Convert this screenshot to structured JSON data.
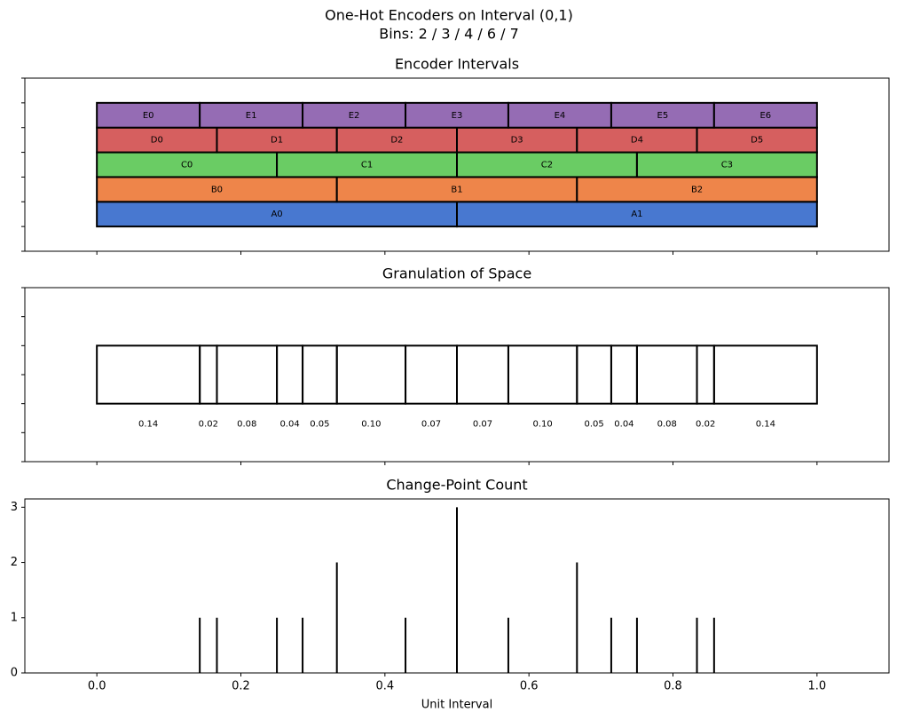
{
  "title": "One-Hot Encoders on Interval (0,1)",
  "subtitle": "Bins: 2 / 3 / 4 / 6 / 7",
  "chart_data": [
    {
      "type": "interval",
      "title": "Encoder Intervals",
      "xlim": [
        -0.1,
        1.1
      ],
      "xticks": [
        {
          "value": 0,
          "label": "0.0"
        },
        0.2,
        0.4,
        0.6,
        0.8,
        {
          "value": 1,
          "label": "1.0"
        }
      ],
      "xtick_labels": false,
      "ylim": [
        0,
        7
      ],
      "yticks": [
        0,
        1,
        2,
        3,
        4,
        5,
        6,
        7
      ],
      "ytick_labels": false,
      "series": [
        {
          "color": "#4878d0",
          "labels": [
            "A0",
            "A1"
          ],
          "edges": [
            0,
            0.5,
            1
          ]
        },
        {
          "color": "#ee854a",
          "labels": [
            "B0",
            "B1",
            "B2"
          ],
          "edges": [
            0,
            0.3333,
            0.6667,
            1
          ]
        },
        {
          "color": "#6acc64",
          "labels": [
            "C0",
            "C1",
            "C2",
            "C3"
          ],
          "edges": [
            0,
            0.25,
            0.5,
            0.75,
            1
          ]
        },
        {
          "color": "#d65f5f",
          "labels": [
            "D0",
            "D1",
            "D2",
            "D3",
            "D4",
            "D5"
          ],
          "edges": [
            0,
            0.1667,
            0.3333,
            0.5,
            0.6667,
            0.8333,
            1
          ]
        },
        {
          "color": "#956cb4",
          "labels": [
            "E0",
            "E1",
            "E2",
            "E3",
            "E4",
            "E5",
            "E6"
          ],
          "edges": [
            0,
            0.1429,
            0.2857,
            0.4286,
            0.5714,
            0.7143,
            0.8571,
            1
          ]
        }
      ]
    },
    {
      "type": "granulation",
      "title": "Granulation of Space",
      "xlim": [
        -0.1,
        1.1
      ],
      "xticks": [
        {
          "value": 0,
          "label": "0.0"
        },
        0.2,
        0.4,
        0.6,
        0.8,
        {
          "value": 1,
          "label": "1.0"
        }
      ],
      "xtick_labels": false,
      "ylim": [
        -1.5,
        1.5
      ],
      "yticks": [
        -1.5,
        -1,
        -0.5,
        0,
        0.5,
        1,
        1.5
      ],
      "ytick_labels": false,
      "edges": [
        0,
        0.1429,
        0.1667,
        0.25,
        0.2857,
        0.3333,
        0.4286,
        0.5,
        0.5714,
        0.6667,
        0.7143,
        0.75,
        0.8333,
        0.8571,
        1
      ],
      "values": [
        0.1429,
        0.0238,
        0.0833,
        0.0357,
        0.0476,
        0.0952,
        0.0714,
        0.0714,
        0.0952,
        0.0476,
        0.0357,
        0.0833,
        0.0238,
        0.1429
      ],
      "value_labels": [
        "0.14",
        "0.02",
        "0.08",
        "0.04",
        "0.05",
        "0.10",
        "0.07",
        "0.07",
        "0.10",
        "0.05",
        "0.04",
        "0.08",
        "0.02",
        "0.14"
      ]
    },
    {
      "type": "stem",
      "title": "Change-Point Count",
      "xlabel": "Unit Interval",
      "xlim": [
        -0.1,
        1.1
      ],
      "xticks": [
        {
          "value": 0,
          "label": "0.0"
        },
        0.2,
        0.4,
        0.6,
        0.8,
        {
          "value": 1,
          "label": "1.0"
        }
      ],
      "xtick_labels": true,
      "ylim": [
        0,
        3.15
      ],
      "yticks": [
        0,
        1,
        2,
        3
      ],
      "ytick_labels": true,
      "x": [
        0.1429,
        0.1667,
        0.25,
        0.2857,
        0.3333,
        0.4286,
        0.5,
        0.5714,
        0.6667,
        0.7143,
        0.75,
        0.8333,
        0.8571
      ],
      "values": [
        1,
        1,
        1,
        1,
        2,
        1,
        3,
        1,
        2,
        1,
        1,
        1,
        1
      ]
    }
  ]
}
